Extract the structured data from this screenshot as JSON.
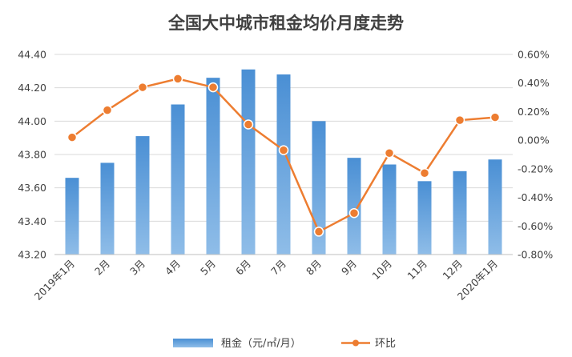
{
  "chart_data": {
    "type": "bar+line",
    "title": "全国大中城市租金均价月度走势",
    "categories": [
      "2019年1月",
      "2月",
      "3月",
      "4月",
      "5月",
      "6月",
      "7月",
      "8月",
      "9月",
      "10月",
      "11月",
      "12月",
      "2020年1月"
    ],
    "series": [
      {
        "name": "租金（元/㎡/月）",
        "type": "bar",
        "axis": "left",
        "color": "#5b9bd5",
        "values": [
          43.66,
          43.75,
          43.91,
          44.1,
          44.26,
          44.31,
          44.28,
          44.0,
          43.78,
          43.74,
          43.64,
          43.7,
          43.77
        ]
      },
      {
        "name": "环比",
        "type": "line",
        "axis": "right",
        "color": "#ed7d31",
        "values": [
          0.02,
          0.21,
          0.37,
          0.43,
          0.37,
          0.11,
          -0.07,
          -0.64,
          -0.51,
          -0.09,
          -0.23,
          0.14,
          0.16
        ]
      }
    ],
    "y_left": {
      "ylim": [
        43.2,
        44.4
      ],
      "ticks": [
        "43.20",
        "43.40",
        "43.60",
        "43.80",
        "44.00",
        "44.20",
        "44.40"
      ]
    },
    "y_right": {
      "ylim": [
        -0.8,
        0.6
      ],
      "ticks": [
        "-0.80%",
        "-0.60%",
        "-0.40%",
        "-0.20%",
        "0.00%",
        "0.20%",
        "0.40%",
        "0.60%"
      ]
    },
    "grid": true,
    "legend": "bottom"
  }
}
